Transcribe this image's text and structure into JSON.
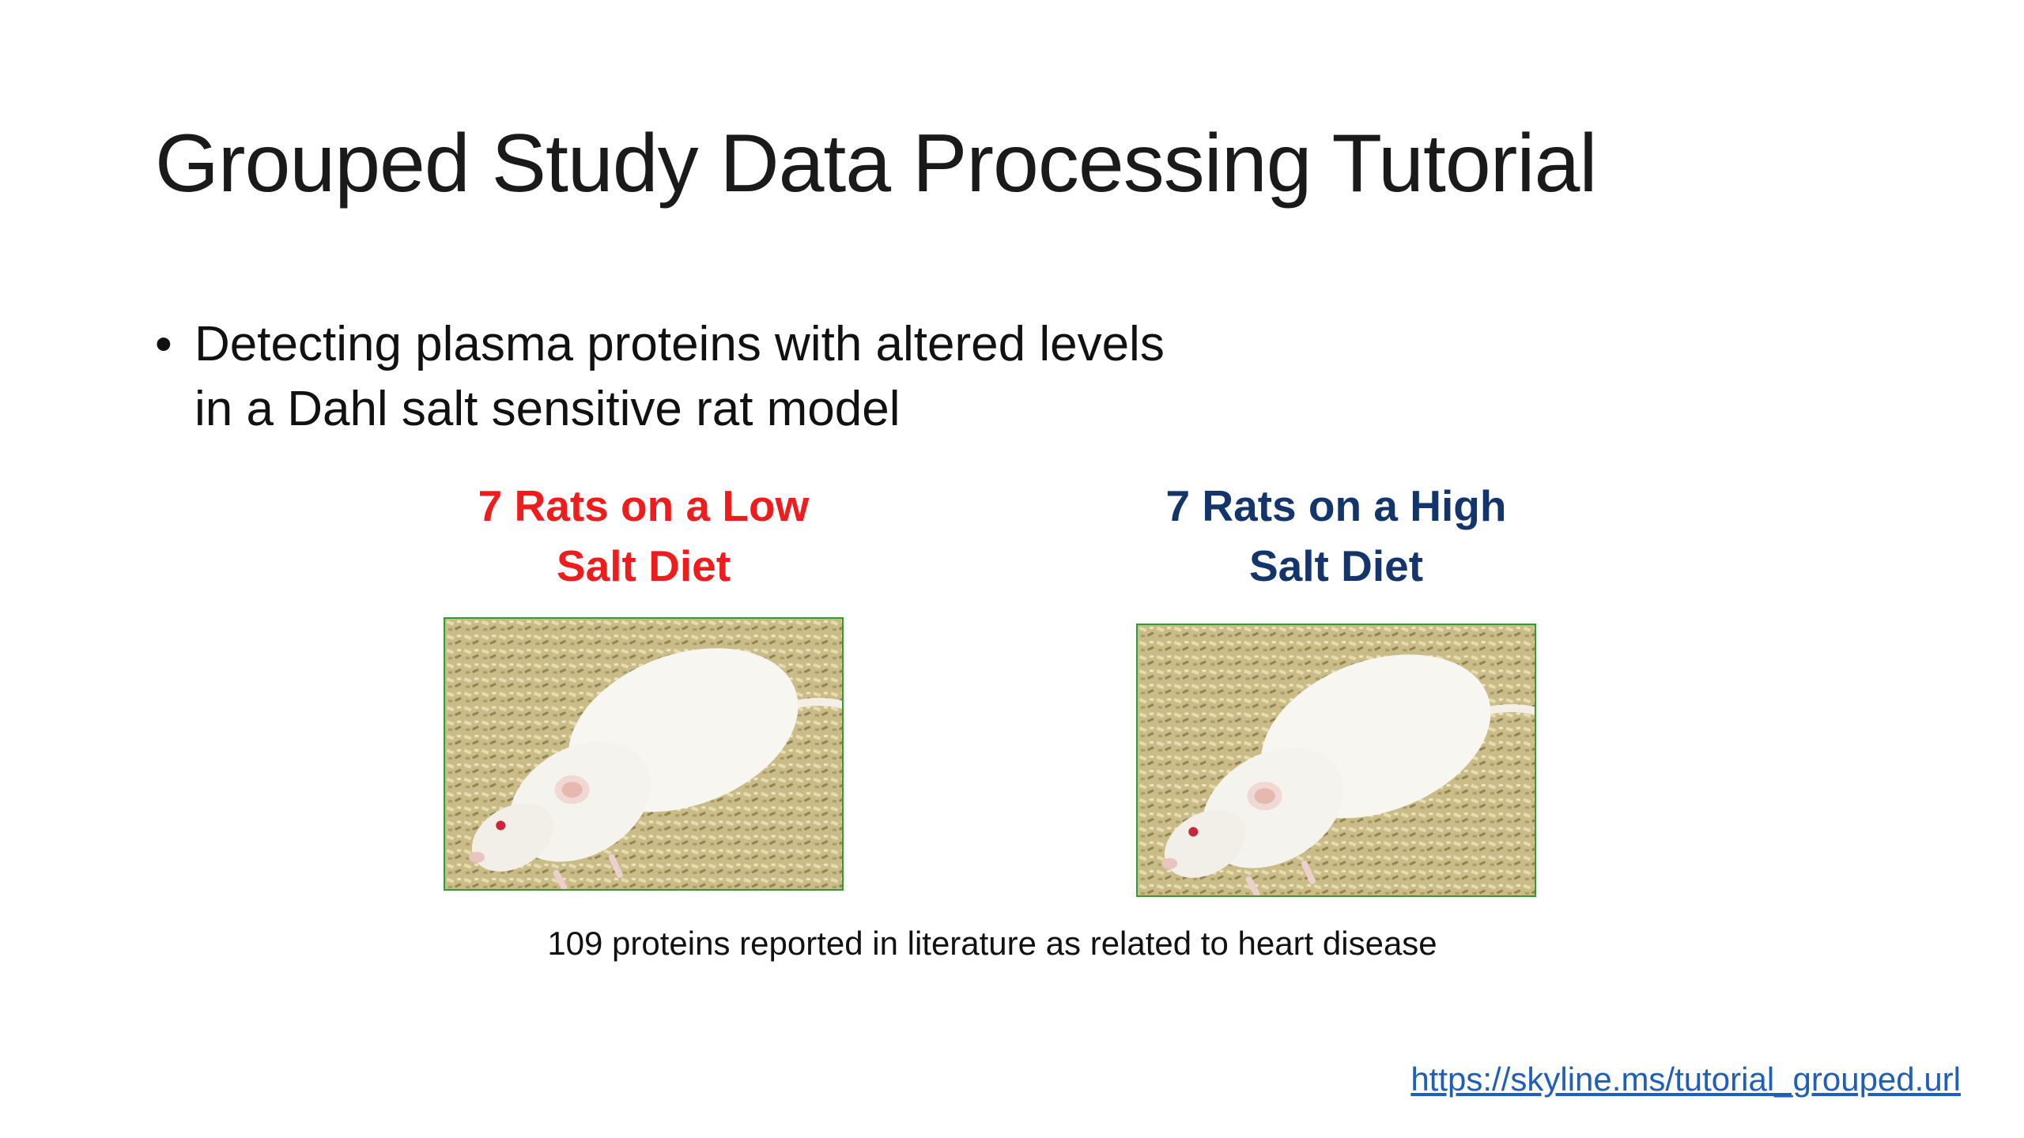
{
  "slide": {
    "title": "Grouped Study Data Processing Tutorial",
    "bullet": {
      "marker": "•",
      "line1": "Detecting plasma proteins with altered levels",
      "line2": "in a Dahl salt sensitive rat model"
    },
    "groups": [
      {
        "line1": "7 Rats on a Low",
        "line2": "Salt Diet",
        "color": "#ee1c1c",
        "image": "white-rat-photo"
      },
      {
        "line1": "7 Rats on a High",
        "line2": "Salt Diet",
        "color": "#14356b",
        "image": "white-rat-photo"
      }
    ],
    "caption": "109 proteins reported in literature as related to heart disease",
    "link": "https://skyline.ms/tutorial_grouped.url",
    "colors": {
      "photo_border": "#2f9e2f",
      "link": "#1f5fb8"
    }
  }
}
